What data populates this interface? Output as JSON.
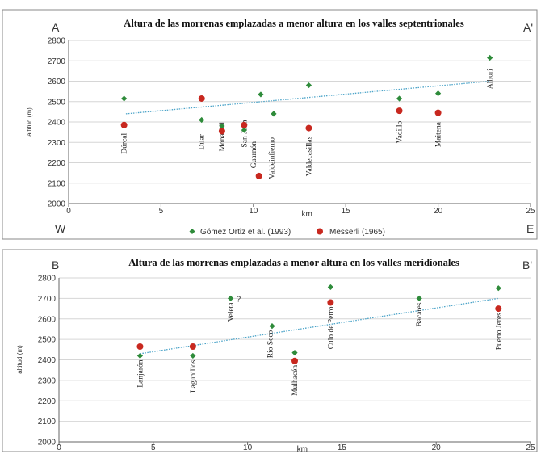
{
  "colors": {
    "gomez": "#2e8b3a",
    "messerli": "#c8281f",
    "trend": "#4aa3c8"
  },
  "legend": {
    "gomez": "Gómez Ortiz  et al. (1993)",
    "messerli": "Messerli (1965)"
  },
  "chart_data": [
    {
      "type": "scatter",
      "title": "Altura de las morrenas emplazadas a menor altura en los valles septentrionales",
      "corner_tl": "A",
      "corner_tr": "A'",
      "corner_bl": "W",
      "corner_br": "E",
      "xlabel": "km",
      "ylabel": "altitud (m)",
      "xlim": [
        0,
        25
      ],
      "ylim": [
        2000,
        2800
      ],
      "xticks": [
        0,
        5,
        10,
        15,
        20,
        25
      ],
      "yticks": [
        2000,
        2100,
        2200,
        2300,
        2400,
        2500,
        2600,
        2700,
        2800
      ],
      "grid": true,
      "trend": {
        "x": [
          3.1,
          22.8
        ],
        "y": [
          2440,
          2600
        ]
      },
      "series": [
        {
          "name": "Gómez Ortiz  et al. (1993)",
          "marker": "diamond",
          "x": [
            3.0,
            7.2,
            8.3,
            9.5,
            10.4,
            11.1,
            13.0,
            17.9,
            20.0,
            22.8
          ],
          "y": [
            2515,
            2410,
            2380,
            2360,
            2535,
            2440,
            2580,
            2515,
            2540,
            2715
          ]
        },
        {
          "name": "Messerli (1965)",
          "marker": "circle",
          "x": [
            3.0,
            7.2,
            8.3,
            9.5,
            10.3,
            13.0,
            17.9,
            20.0
          ],
          "y": [
            2385,
            2515,
            2355,
            2385,
            2135,
            2370,
            2455,
            2445
          ]
        }
      ],
      "sites": [
        {
          "name": "Dúrcal",
          "x": 3.0,
          "y": 2345
        },
        {
          "name": "Dílar",
          "x": 7.2,
          "y": 2340
        },
        {
          "name": "Monachil",
          "x": 8.3,
          "y": 2400
        },
        {
          "name": "San Juan",
          "x": 9.5,
          "y": 2410
        },
        {
          "name": "Guarnón",
          "x": 10.0,
          "y": 2305
        },
        {
          "name": "Valdeinfierno",
          "x": 11.0,
          "y": 2325
        },
        {
          "name": "Valdecasillas",
          "x": 13.0,
          "y": 2330
        },
        {
          "name": "Vadillo",
          "x": 17.9,
          "y": 2405
        },
        {
          "name": "Maitena",
          "x": 20.0,
          "y": 2400
        },
        {
          "name": "Alhorí",
          "x": 22.8,
          "y": 2660
        }
      ]
    },
    {
      "type": "scatter",
      "title": "Altura de las morrenas emplazadas a menor altura en los valles meridionales",
      "corner_tl": "B",
      "corner_tr": "B'",
      "xlabel": "km",
      "ylabel": "altitud (m)",
      "xlim": [
        0,
        25
      ],
      "ylim": [
        2000,
        2800
      ],
      "xticks": [
        0,
        5,
        10,
        15,
        20,
        25
      ],
      "yticks": [
        2000,
        2100,
        2200,
        2300,
        2400,
        2500,
        2600,
        2700,
        2800
      ],
      "grid": true,
      "trend": {
        "x": [
          4.3,
          23.3
        ],
        "y": [
          2430,
          2700
        ]
      },
      "series": [
        {
          "name": "Gómez Ortiz  et al. (1993)",
          "marker": "diamond",
          "x": [
            4.3,
            7.1,
            9.1,
            11.3,
            12.5,
            14.4,
            19.1,
            23.3
          ],
          "y": [
            2420,
            2420,
            2700,
            2565,
            2435,
            2755,
            2700,
            2750
          ]
        },
        {
          "name": "Messerli (1965)",
          "marker": "circle",
          "x": [
            4.3,
            7.1,
            12.5,
            14.4,
            23.3
          ],
          "y": [
            2465,
            2465,
            2395,
            2680,
            2650
          ]
        }
      ],
      "annotations": [
        {
          "text": "?",
          "x": 9.4,
          "y": 2700
        }
      ],
      "sites": [
        {
          "name": "Lanjarón",
          "x": 4.3,
          "y": 2400
        },
        {
          "name": "Lagunillos",
          "x": 7.1,
          "y": 2400
        },
        {
          "name": "Veleta",
          "x": 9.1,
          "y": 2680
        },
        {
          "name": "Río Seco",
          "x": 11.2,
          "y": 2545
        },
        {
          "name": "Mulhacén",
          "x": 12.5,
          "y": 2375
        },
        {
          "name": "Culo de Perro",
          "x": 14.4,
          "y": 2660
        },
        {
          "name": "Bacares",
          "x": 19.1,
          "y": 2680
        },
        {
          "name": "Puerto Jeres",
          "x": 23.3,
          "y": 2630
        }
      ]
    }
  ]
}
